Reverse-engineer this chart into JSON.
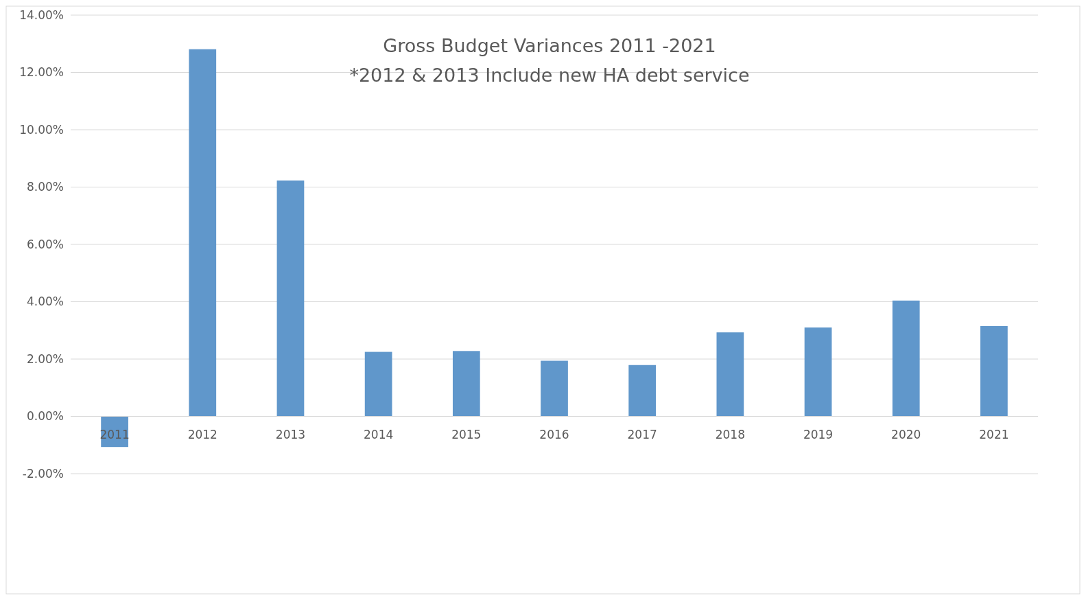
{
  "chart_data": {
    "type": "bar",
    "title": "Gross Budget Variances 2011 -2021",
    "subtitle": "*2012 & 2013 Include new HA debt service",
    "categories": [
      "2011",
      "2012",
      "2013",
      "2014",
      "2015",
      "2016",
      "2017",
      "2018",
      "2019",
      "2020",
      "2021"
    ],
    "values": [
      -1.07,
      12.81,
      8.23,
      2.25,
      2.28,
      1.94,
      1.79,
      2.93,
      3.1,
      4.04,
      3.15
    ],
    "color": "#6097cb",
    "ylim": [
      -2,
      14
    ],
    "yticks": [
      {
        "value": -2,
        "label": "-2.00%"
      },
      {
        "value": 0,
        "label": "0.00%"
      },
      {
        "value": 2,
        "label": "2.00%"
      },
      {
        "value": 4,
        "label": "4.00%"
      },
      {
        "value": 6,
        "label": "6.00%"
      },
      {
        "value": 8,
        "label": "8.00%"
      },
      {
        "value": 10,
        "label": "10.00%"
      },
      {
        "value": 12,
        "label": "12.00%"
      },
      {
        "value": 14,
        "label": "14.00%"
      }
    ],
    "grid": "y"
  }
}
